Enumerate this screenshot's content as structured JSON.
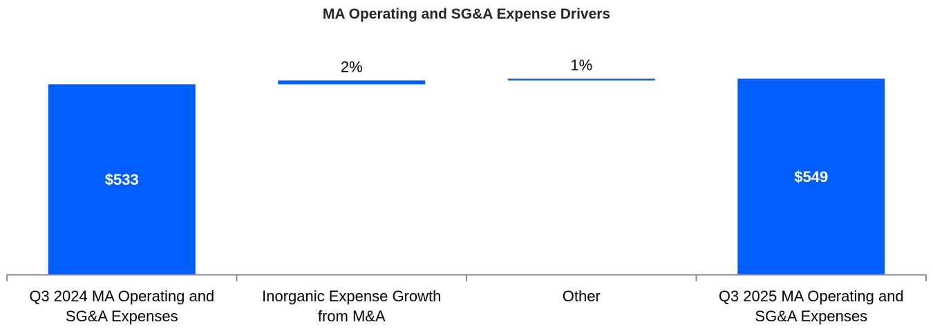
{
  "chart_data": {
    "type": "bar",
    "title": "MA Operating and SG&A Expense Drivers",
    "xlabel": "",
    "ylabel": "",
    "categories": [
      [
        "Q3 2024 MA Operating and",
        "SG&A Expenses"
      ],
      [
        "Inorganic Expense Growth",
        "from M&A"
      ],
      [
        "Other"
      ],
      [
        "Q3 2025 MA Operating and",
        "SG&A Expenses"
      ]
    ],
    "bars": [
      {
        "kind": "total",
        "base": 0,
        "value": 533,
        "label": "$533",
        "color": "#005EFF"
      },
      {
        "kind": "delta",
        "base": 533,
        "value": 11,
        "label": "2%",
        "color": "#005EFF"
      },
      {
        "kind": "delta",
        "base": 544,
        "value": 5,
        "label": "1%",
        "color": "#1F5FAF"
      },
      {
        "kind": "total",
        "base": 0,
        "value": 549,
        "label": "$549",
        "color": "#005EFF"
      }
    ],
    "ylim": [
      0,
      549
    ],
    "grid": false,
    "legend": "none"
  }
}
